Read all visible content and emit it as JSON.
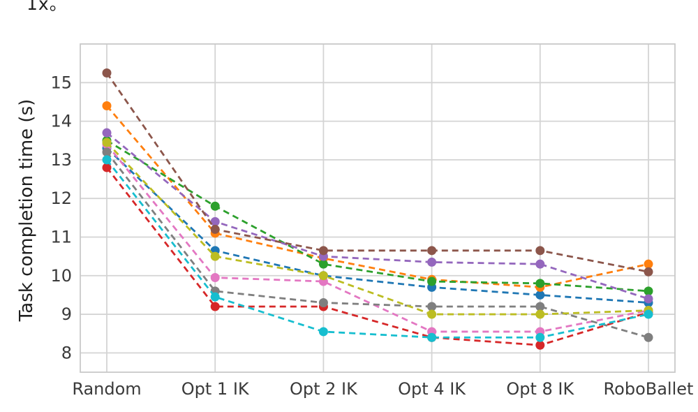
{
  "page": {
    "top_text_fragment": "1x。"
  },
  "chart_data": {
    "type": "line",
    "title": "",
    "xlabel": "",
    "ylabel": "Task completion time (s)",
    "categories": [
      "Random",
      "Opt 1 IK",
      "Opt 2 IK",
      "Opt 4 IK",
      "Opt 8 IK",
      "RoboBallet"
    ],
    "yticks": [
      8,
      9,
      10,
      11,
      12,
      13,
      14,
      15
    ],
    "ylim": [
      7.5,
      16.0
    ],
    "grid": true,
    "legend": "none",
    "line_style": "dashed",
    "marker": "circle",
    "series": [
      {
        "name": "series-blue",
        "color": "#1f77b4",
        "values": [
          13.3,
          10.65,
          10.0,
          9.7,
          9.5,
          9.3
        ]
      },
      {
        "name": "series-orange",
        "color": "#ff7f0e",
        "values": [
          14.4,
          11.1,
          10.45,
          9.9,
          9.7,
          10.3
        ]
      },
      {
        "name": "series-green",
        "color": "#2ca02c",
        "values": [
          13.5,
          11.8,
          10.3,
          9.85,
          9.8,
          9.6
        ]
      },
      {
        "name": "series-red",
        "color": "#d62728",
        "values": [
          12.8,
          9.2,
          9.2,
          8.4,
          8.2,
          9.05
        ]
      },
      {
        "name": "series-purple",
        "color": "#9467bd",
        "values": [
          13.7,
          11.4,
          10.5,
          10.35,
          10.3,
          9.4
        ]
      },
      {
        "name": "series-brown",
        "color": "#8c564b",
        "values": [
          15.25,
          11.2,
          10.65,
          10.65,
          10.65,
          10.1
        ]
      },
      {
        "name": "series-pink",
        "color": "#e377c2",
        "values": [
          13.4,
          9.95,
          9.85,
          8.55,
          8.55,
          9.1
        ]
      },
      {
        "name": "series-gray",
        "color": "#7f7f7f",
        "values": [
          13.2,
          9.6,
          9.3,
          9.2,
          9.2,
          8.4
        ]
      },
      {
        "name": "series-olive",
        "color": "#bcbd22",
        "values": [
          13.45,
          10.5,
          10.0,
          9.0,
          9.0,
          9.1
        ]
      },
      {
        "name": "series-cyan",
        "color": "#17becf",
        "values": [
          13.0,
          9.45,
          8.55,
          8.4,
          8.4,
          9.0
        ]
      }
    ]
  },
  "colors": {
    "grid": "#d4d4d4",
    "border": "#c9c9c9",
    "tick_text": "#3a3a3a",
    "label_text": "#1f1f1f",
    "background": "#ffffff"
  }
}
